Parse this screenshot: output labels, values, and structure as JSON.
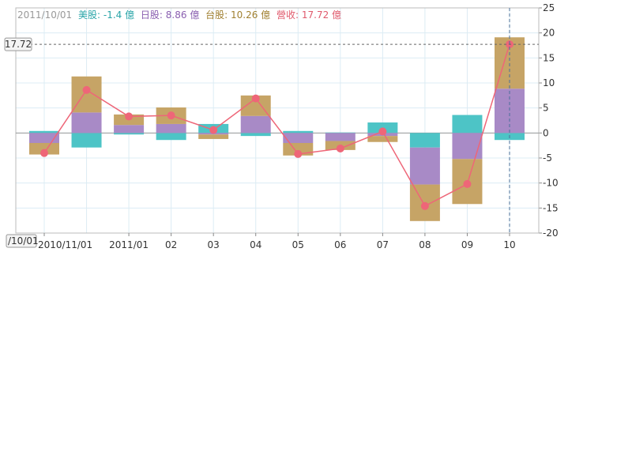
{
  "legend": {
    "date": "2011/10/01",
    "us": "美股: -1.4 億",
    "jp": "日股: 8.86 億",
    "tw": "台股: 10.26 億",
    "revenue": "營收: 17.72 億"
  },
  "crosshair": {
    "y_label": "17.72",
    "x_label": "/10/01"
  },
  "colors": {
    "us": "#4dc4c6",
    "jp": "#a88ac6",
    "tw": "#c6a466",
    "revenue": "#ee6678",
    "grid": "#dcecf4",
    "axis": "#888888",
    "date_text": "#999999"
  },
  "chart_data": {
    "type": "bar",
    "stacked": true,
    "categories": [
      "2010/11/01",
      "",
      "2011/01",
      "02",
      "03",
      "04",
      "05",
      "06",
      "07",
      "08",
      "09",
      "10"
    ],
    "series": [
      {
        "name": "美股",
        "type": "bar",
        "values": [
          0.4,
          -2.9,
          -0.3,
          -1.4,
          1.8,
          -0.6,
          0.4,
          0.1,
          2.1,
          -2.9,
          3.6,
          -1.4
        ]
      },
      {
        "name": "日股",
        "type": "bar",
        "values": [
          -2.0,
          4.1,
          1.6,
          1.8,
          -0.3,
          3.4,
          -2.0,
          -1.6,
          -0.6,
          -7.4,
          -5.2,
          8.86
        ]
      },
      {
        "name": "台股",
        "type": "bar",
        "values": [
          -2.3,
          7.2,
          2.1,
          3.3,
          -0.9,
          4.1,
          -2.5,
          -1.8,
          -1.2,
          -7.3,
          -9.0,
          10.26
        ]
      },
      {
        "name": "營收",
        "type": "line",
        "values": [
          -4.0,
          8.6,
          3.3,
          3.5,
          0.6,
          6.9,
          -4.2,
          -3.1,
          0.3,
          -14.6,
          -10.2,
          17.72
        ]
      }
    ],
    "ylim": [
      -20,
      25
    ],
    "yticks": [
      25,
      20,
      15,
      10,
      5,
      0,
      -5,
      -10,
      -15,
      -20
    ],
    "grid": true,
    "legend_position": "top-left",
    "title": "",
    "xlabel": "",
    "ylabel": ""
  }
}
